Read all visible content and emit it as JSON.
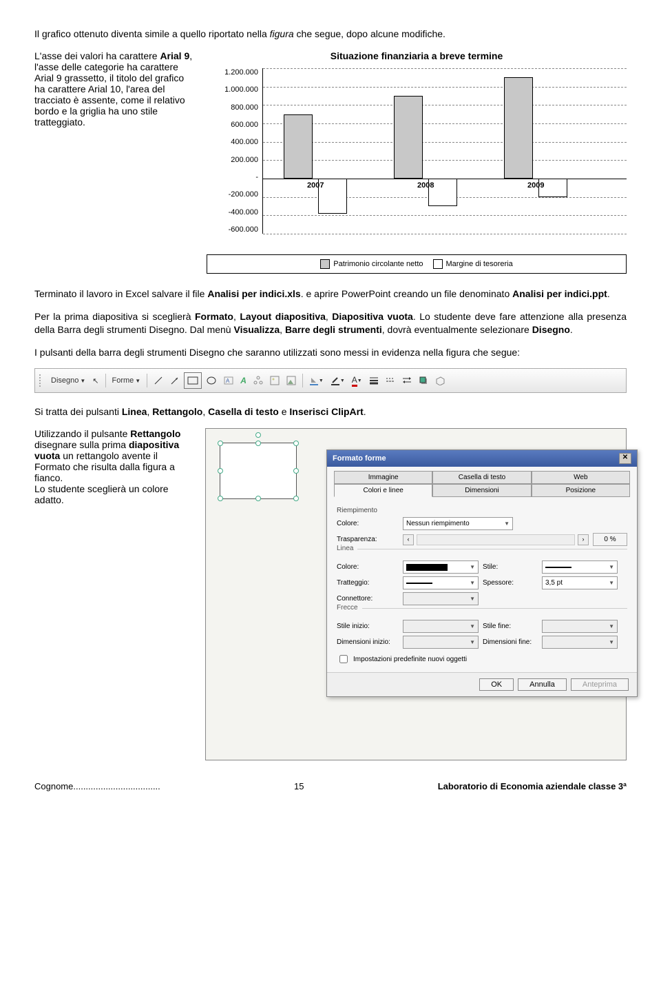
{
  "intro": "Il grafico ottenuto diventa simile a quello riportato nella figura che segue, dopo alcune modifiche.",
  "left_text": "L'asse dei valori ha carattere Arial 9, l'asse delle categorie ha carattere Arial 9 grassetto, il titolo del grafico ha carattere Arial 10, l'area del tracciato è assente, come il relativo bordo e la griglia ha uno stile tratteggiato.",
  "chart": {
    "title": "Situazione finanziaria a breve termine",
    "y_ticks": [
      "1.200.000",
      "1.000.000",
      "800.000",
      "600.000",
      "400.000",
      "200.000",
      "-",
      "-200.000",
      "-400.000",
      "-600.000"
    ],
    "ylim_max": 1200000,
    "ylim_min": -600000,
    "years": [
      "2007",
      "2008",
      "2009"
    ],
    "pcn": [
      700000,
      900000,
      1100000
    ],
    "mt": [
      -380000,
      -300000,
      -200000
    ],
    "color_pcn": "#c8c8c8",
    "color_mt": "#ffffff",
    "grid_color": "#888888",
    "legend": [
      "Patrimonio circolante netto",
      "Margine di tesoreria"
    ]
  },
  "para2": "Terminato il lavoro in Excel salvare il file Analisi per indici.xls. e aprire PowerPoint creando un file denominato Analisi per indici.ppt.",
  "para3": "Per la prima diapositiva si sceglierà Formato, Layout diapositiva, Diapositiva vuota. Lo studente deve fare attenzione alla presenza della Barra degli strumenti Disegno. Dal menù Visualizza, Barre degli strumenti, dovrà eventualmente selezionare Disegno.",
  "para4": "I pulsanti della barra degli strumenti Disegno che saranno utilizzati sono messi in evidenza nella figura che segue:",
  "toolbar": {
    "disegno": "Disegno",
    "forme": "Forme"
  },
  "para5": "Si tratta dei pulsanti Linea, Rettangolo, Casella di testo e Inserisci ClipArt.",
  "para6": "Utilizzando il pulsante Rettangolo disegnare sulla prima diapositiva vuota un rettangolo avente il Formato che risulta dalla figura a fianco. Lo studente sceglierà un colore adatto.",
  "dialog": {
    "title": "Formato forme",
    "tabs_top": [
      "Immagine",
      "Casella di testo",
      "Web"
    ],
    "tabs_bottom": [
      "Colori e linee",
      "Dimensioni",
      "Posizione"
    ],
    "riempimento": "Riempimento",
    "colore": "Colore:",
    "colore_val": "Nessun riempimento",
    "trasparenza": "Trasparenza:",
    "trasparenza_val": "0 %",
    "linea": "Linea",
    "stile": "Stile:",
    "tratteggio": "Tratteggio:",
    "spessore": "Spessore:",
    "spessore_val": "3,5 pt",
    "connettore": "Connettore:",
    "frecce": "Frecce",
    "stile_inizio": "Stile inizio:",
    "stile_fine": "Stile fine:",
    "dim_inizio": "Dimensioni inizio:",
    "dim_fine": "Dimensioni fine:",
    "checkbox": "Impostazioni predefinite nuovi oggetti",
    "ok": "OK",
    "annulla": "Annulla",
    "anteprima": "Anteprima"
  },
  "footer": {
    "left": "Cognome...................................",
    "page": "15",
    "right": "Laboratorio di Economia aziendale classe 3ª"
  }
}
